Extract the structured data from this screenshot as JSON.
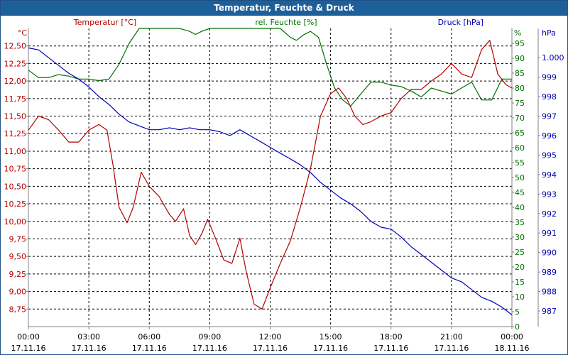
{
  "window": {
    "title": "Temperatur, Feuchte & Druck"
  },
  "chart_data": {
    "type": "line",
    "grid": true,
    "colors": {
      "temperature": "#b40000",
      "humidity": "#007000",
      "pressure": "#0000b4",
      "title_bar": "#1d5f99",
      "grid": "#000000"
    },
    "series_labels": {
      "temperature": "Temperatur [°C]",
      "humidity": "rel. Feuchte [%]",
      "pressure": "Druck [hPa]"
    },
    "axis_units": {
      "temperature": "°C",
      "humidity": "%",
      "pressure": "hPa"
    },
    "x_ticks": [
      {
        "time": "00:00",
        "date": "17.11.16"
      },
      {
        "time": "03:00",
        "date": "17.11.16"
      },
      {
        "time": "06:00",
        "date": "17.11.16"
      },
      {
        "time": "09:00",
        "date": "17.11.16"
      },
      {
        "time": "12:00",
        "date": "17.11.16"
      },
      {
        "time": "15:00",
        "date": "17.11.16"
      },
      {
        "time": "18:00",
        "date": "17.11.16"
      },
      {
        "time": "21:00",
        "date": "17.11.16"
      },
      {
        "time": "00:00",
        "date": "18.11.16"
      }
    ],
    "xlim_hours": [
      0,
      24
    ],
    "axes": {
      "temperature": {
        "ylim": [
          8.5,
          12.75
        ],
        "ticks": [
          "8,75",
          "9,00",
          "9,25",
          "9,50",
          "9,75",
          "10,00",
          "10,25",
          "10,50",
          "10,75",
          "11,00",
          "11,25",
          "11,50",
          "11,75",
          "12,00",
          "12,25",
          "12,50"
        ]
      },
      "humidity": {
        "ylim": [
          0,
          100
        ],
        "ticks": [
          "0",
          "5",
          "10",
          "15",
          "20",
          "25",
          "30",
          "35",
          "40",
          "45",
          "50",
          "55",
          "60",
          "65",
          "70",
          "75",
          "80",
          "85",
          "90",
          "95"
        ]
      },
      "pressure": {
        "ylim": [
          986.2,
          1001.5
        ],
        "ticks": [
          "987",
          "988",
          "989",
          "990",
          "991",
          "992",
          "993",
          "994",
          "995",
          "996",
          "997",
          "998",
          "999",
          "1.000"
        ]
      }
    },
    "series": [
      {
        "key": "temperature",
        "name": "Temperatur [°C]",
        "axis": "temperature",
        "points": [
          [
            0,
            11.3
          ],
          [
            0.5,
            11.5
          ],
          [
            1,
            11.45
          ],
          [
            1.5,
            11.3
          ],
          [
            2,
            11.13
          ],
          [
            2.5,
            11.13
          ],
          [
            3,
            11.3
          ],
          [
            3.5,
            11.38
          ],
          [
            3.9,
            11.3
          ],
          [
            4.2,
            10.8
          ],
          [
            4.5,
            10.2
          ],
          [
            4.9,
            9.98
          ],
          [
            5.2,
            10.2
          ],
          [
            5.6,
            10.7
          ],
          [
            6,
            10.5
          ],
          [
            6.5,
            10.35
          ],
          [
            7,
            10.1
          ],
          [
            7.3,
            10.0
          ],
          [
            7.7,
            10.18
          ],
          [
            8,
            9.8
          ],
          [
            8.3,
            9.67
          ],
          [
            8.6,
            9.82
          ],
          [
            8.9,
            10.03
          ],
          [
            9.3,
            9.75
          ],
          [
            9.7,
            9.45
          ],
          [
            10.1,
            9.4
          ],
          [
            10.5,
            9.76
          ],
          [
            10.8,
            9.3
          ],
          [
            11.2,
            8.82
          ],
          [
            11.6,
            8.75
          ],
          [
            12,
            9.05
          ],
          [
            12.5,
            9.4
          ],
          [
            13,
            9.72
          ],
          [
            13.5,
            10.2
          ],
          [
            14,
            10.75
          ],
          [
            14.5,
            11.5
          ],
          [
            15,
            11.82
          ],
          [
            15.4,
            11.9
          ],
          [
            15.8,
            11.75
          ],
          [
            16.2,
            11.5
          ],
          [
            16.6,
            11.38
          ],
          [
            17,
            11.42
          ],
          [
            17.5,
            11.5
          ],
          [
            18,
            11.55
          ],
          [
            18.5,
            11.75
          ],
          [
            19,
            11.88
          ],
          [
            19.5,
            11.88
          ],
          [
            20,
            12.0
          ],
          [
            20.5,
            12.1
          ],
          [
            21,
            12.25
          ],
          [
            21.5,
            12.1
          ],
          [
            22,
            12.05
          ],
          [
            22.5,
            12.45
          ],
          [
            22.9,
            12.58
          ],
          [
            23.3,
            12.1
          ],
          [
            23.7,
            11.95
          ],
          [
            24,
            11.9
          ]
        ]
      },
      {
        "key": "humidity",
        "name": "rel. Feuchte [%]",
        "axis": "humidity",
        "points": [
          [
            0,
            86
          ],
          [
            0.5,
            83.5
          ],
          [
            1,
            83.5
          ],
          [
            1.5,
            84.5
          ],
          [
            2,
            84
          ],
          [
            2.5,
            83
          ],
          [
            3,
            83
          ],
          [
            3.5,
            82.5
          ],
          [
            4,
            83
          ],
          [
            4.5,
            88
          ],
          [
            5,
            95
          ],
          [
            5.5,
            100
          ],
          [
            6,
            100
          ],
          [
            6.5,
            100
          ],
          [
            7,
            100
          ],
          [
            7.5,
            100
          ],
          [
            8,
            99
          ],
          [
            8.3,
            98
          ],
          [
            8.6,
            99
          ],
          [
            9,
            100
          ],
          [
            10,
            100
          ],
          [
            11,
            100
          ],
          [
            11.5,
            100
          ],
          [
            12,
            100
          ],
          [
            12.5,
            100
          ],
          [
            13,
            97
          ],
          [
            13.3,
            96
          ],
          [
            13.7,
            98
          ],
          [
            14,
            99
          ],
          [
            14.4,
            97
          ],
          [
            14.8,
            88
          ],
          [
            15.2,
            80
          ],
          [
            15.6,
            76
          ],
          [
            16,
            74
          ],
          [
            16.5,
            78
          ],
          [
            17,
            82
          ],
          [
            17.5,
            82
          ],
          [
            18,
            81
          ],
          [
            18.5,
            80.5
          ],
          [
            19,
            79
          ],
          [
            19.5,
            77
          ],
          [
            20,
            80
          ],
          [
            20.5,
            79
          ],
          [
            21,
            78
          ],
          [
            21.5,
            80
          ],
          [
            22,
            82
          ],
          [
            22.5,
            76
          ],
          [
            23,
            76
          ],
          [
            23.5,
            83
          ],
          [
            24,
            83
          ]
        ]
      },
      {
        "key": "pressure",
        "name": "Druck [hPa]",
        "axis": "pressure",
        "points": [
          [
            0,
            1000.5
          ],
          [
            0.5,
            1000.4
          ],
          [
            1,
            1000.0
          ],
          [
            1.5,
            999.6
          ],
          [
            2,
            999.2
          ],
          [
            2.5,
            998.9
          ],
          [
            3,
            998.5
          ],
          [
            3.5,
            998.0
          ],
          [
            4,
            997.6
          ],
          [
            4.5,
            997.1
          ],
          [
            5,
            996.7
          ],
          [
            5.5,
            996.5
          ],
          [
            6,
            996.3
          ],
          [
            6.5,
            996.3
          ],
          [
            7,
            996.4
          ],
          [
            7.5,
            996.3
          ],
          [
            8,
            996.4
          ],
          [
            8.5,
            996.3
          ],
          [
            9,
            996.3
          ],
          [
            9.5,
            996.2
          ],
          [
            10,
            996.0
          ],
          [
            10.5,
            996.3
          ],
          [
            11,
            996.0
          ],
          [
            11.5,
            995.7
          ],
          [
            12,
            995.4
          ],
          [
            12.5,
            995.1
          ],
          [
            13,
            994.8
          ],
          [
            13.5,
            994.5
          ],
          [
            14,
            994.1
          ],
          [
            14.5,
            993.6
          ],
          [
            15,
            993.2
          ],
          [
            15.5,
            992.8
          ],
          [
            16,
            992.5
          ],
          [
            16.5,
            992.1
          ],
          [
            17,
            991.6
          ],
          [
            17.5,
            991.3
          ],
          [
            18,
            991.2
          ],
          [
            18.5,
            990.8
          ],
          [
            19,
            990.3
          ],
          [
            19.5,
            989.9
          ],
          [
            20,
            989.5
          ],
          [
            20.5,
            989.1
          ],
          [
            21,
            988.7
          ],
          [
            21.5,
            988.5
          ],
          [
            22,
            988.1
          ],
          [
            22.5,
            987.7
          ],
          [
            23,
            987.5
          ],
          [
            23.5,
            987.2
          ],
          [
            24,
            986.8
          ]
        ]
      }
    ]
  }
}
